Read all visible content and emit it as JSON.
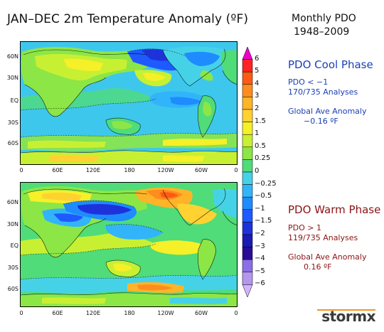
{
  "title": "JAN–DEC 2m Temperature Anomaly (ºF)",
  "right_header": {
    "line1": "Monthly PDO",
    "line2": "1948–2009"
  },
  "cool": {
    "heading": "PDO Cool Phase",
    "criterion": "PDO < −1",
    "count": "170/735 Analyses",
    "global_label": "Global Ave Anomaly",
    "global_value": "−0.16 ºF",
    "color": "#1a3fb5"
  },
  "warm": {
    "heading": "PDO Warm Phase",
    "criterion": "PDO > 1",
    "count": "119/735 Analyses",
    "global_label": "Global Ave Anomaly",
    "global_value": "0.16 ºF",
    "color": "#8b1414"
  },
  "lat_labels": [
    "60N",
    "30N",
    "EQ",
    "30S",
    "60S"
  ],
  "lon_labels": [
    "0",
    "60E",
    "120E",
    "180",
    "120W",
    "60W",
    "0"
  ],
  "colorbar": {
    "labels": [
      "6",
      "5",
      "4",
      "3",
      "2",
      "1.5",
      "1",
      "0.5",
      "0.25",
      "0",
      "−0.25",
      "−0.5",
      "−1",
      "−1.5",
      "−2",
      "−3",
      "−4",
      "−5",
      "−6"
    ],
    "colors": [
      "#f000c8",
      "#ff2222",
      "#ff5a14",
      "#ff8c1e",
      "#ffb428",
      "#ffd232",
      "#f5f028",
      "#c8f032",
      "#8ce646",
      "#50dc78",
      "#46d2e6",
      "#32b4fa",
      "#1e8cff",
      "#1e5aff",
      "#1e32dc",
      "#1a1ab4",
      "#2a0c96",
      "#8c6ee6",
      "#b496f0",
      "#d2b4ff"
    ]
  },
  "logo": {
    "text": "stormx"
  }
}
